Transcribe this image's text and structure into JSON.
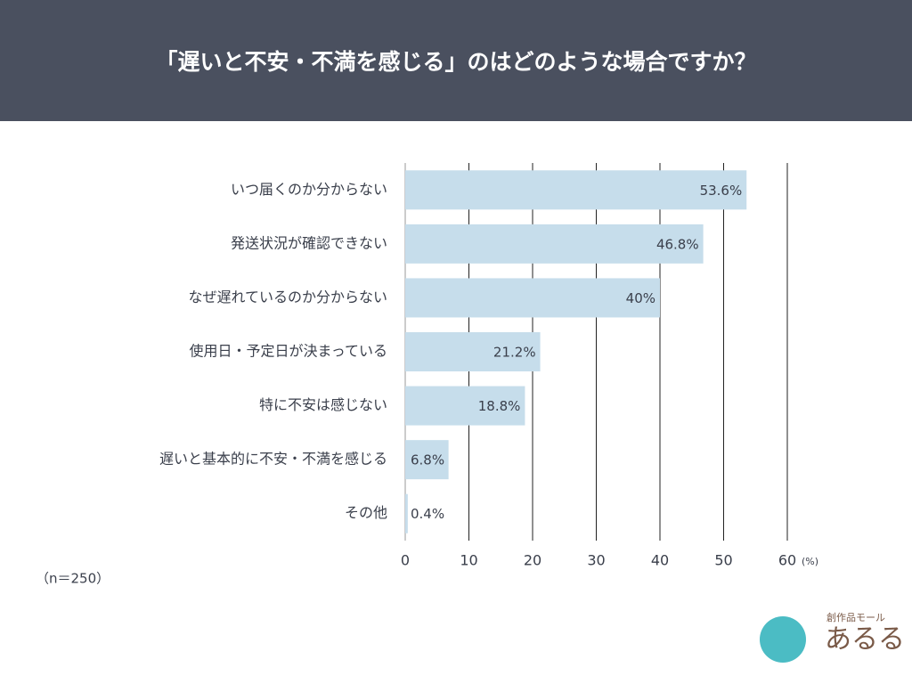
{
  "chart_data": {
    "type": "barh",
    "title": "「遅いと不安・不満を感じる」のはどのような場合ですか？",
    "categories": [
      "いつ届くのか分からない",
      "発送状況が確認できない",
      "なぜ遅れているのか分からない",
      "使用日・予定日が決まっている",
      "特に不安は感じない",
      "遅いと基本的に不安・不満を感じる",
      "その他"
    ],
    "values": [
      53.6,
      46.8,
      40,
      21.2,
      18.8,
      6.8,
      0.4
    ],
    "value_labels": [
      "53.6%",
      "46.8%",
      "40%",
      "21.2%",
      "18.8%",
      "6.8%",
      "0.4%"
    ],
    "color": "#c6ddeb",
    "xlim": [
      0,
      60
    ],
    "xticks": [
      0,
      10,
      20,
      30,
      40,
      50,
      60
    ],
    "x_unit": "(%)",
    "grid": true,
    "note": "（n＝250）"
  },
  "logo": {
    "tagline": "創作品モール",
    "name": "あるる"
  }
}
